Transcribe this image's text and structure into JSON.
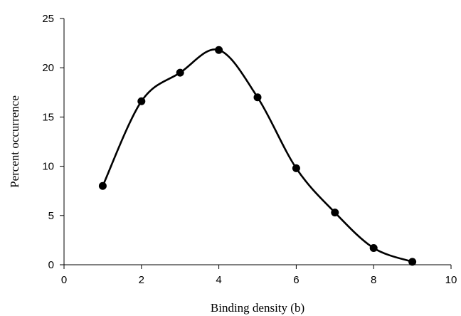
{
  "chart_data": {
    "type": "line",
    "title": "",
    "xlabel": "Binding density (b)",
    "ylabel": "Percent occurrence",
    "xlim": [
      0,
      10
    ],
    "ylim": [
      0,
      25
    ],
    "x_ticks": [
      0,
      2,
      4,
      6,
      8,
      10
    ],
    "y_ticks": [
      0,
      5,
      10,
      15,
      20,
      25
    ],
    "grid": false,
    "legend": "none",
    "line_style": "smooth",
    "marker": "filled-circle",
    "color": "#000000",
    "series": [
      {
        "x": [
          1,
          2,
          3,
          4,
          5,
          6,
          7,
          8,
          9
        ],
        "y": [
          8.0,
          16.6,
          19.5,
          21.8,
          17.0,
          9.8,
          5.3,
          1.7,
          0.3
        ]
      }
    ]
  }
}
